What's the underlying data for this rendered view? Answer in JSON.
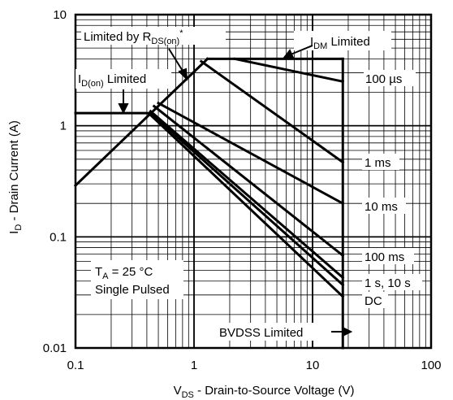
{
  "chart_data": {
    "type": "line",
    "x_scale": "log",
    "y_scale": "log",
    "xlim": [
      0.1,
      100
    ],
    "ylim": [
      0.01,
      10
    ],
    "grid": true,
    "x_ticks": [
      "0.1",
      "1",
      "10",
      "100"
    ],
    "y_ticks": [
      "10",
      "1",
      "0.1",
      "0.01"
    ],
    "xlabel": {
      "main": "V",
      "sub": "DS",
      "rest": " - Drain-to-Source Voltage (V)"
    },
    "ylabel": {
      "main": "I",
      "sub": "D",
      "rest": " - Drain Current (A)"
    },
    "series": [
      {
        "name": "Limited by RDS(on)",
        "x": [
          0.1,
          1.3
        ],
        "y": [
          0.29,
          4.0
        ]
      },
      {
        "name": "IDM Limited",
        "x": [
          1.3,
          18
        ],
        "y": [
          4.0,
          4.0
        ]
      },
      {
        "name": "ID(on) Limited",
        "x": [
          0.1,
          0.43
        ],
        "y": [
          1.3,
          1.3
        ]
      },
      {
        "name": "100 µs",
        "x": [
          2.2,
          18
        ],
        "y": [
          4.0,
          2.5
        ]
      },
      {
        "name": "1 ms",
        "x": [
          1.15,
          18
        ],
        "y": [
          3.8,
          0.47
        ]
      },
      {
        "name": "10 ms",
        "x": [
          0.5,
          18
        ],
        "y": [
          1.6,
          0.2
        ]
      },
      {
        "name": "100 ms",
        "x": [
          0.46,
          18
        ],
        "y": [
          1.5,
          0.068
        ]
      },
      {
        "name": "1 s",
        "x": [
          0.43,
          18
        ],
        "y": [
          1.35,
          0.043
        ]
      },
      {
        "name": "10 s",
        "x": [
          0.43,
          18
        ],
        "y": [
          1.3,
          0.037
        ]
      },
      {
        "name": "DC",
        "x": [
          0.43,
          18
        ],
        "y": [
          1.25,
          0.029
        ]
      },
      {
        "name": "BVDSS Limited",
        "x": [
          18,
          18
        ],
        "y": [
          0.01,
          4.0
        ]
      }
    ],
    "annotations": {
      "rds": {
        "main": "Limited by R",
        "sub": "DS(on)",
        "sup": "*"
      },
      "idm": {
        "main": "I",
        "sub": "DM",
        "rest": " Limited"
      },
      "idon": {
        "main": "I",
        "sub": "D(on)",
        "rest": " Limited"
      },
      "us100": "100 µs",
      "ms1": "1 ms",
      "ms10": "10 ms",
      "ms100": "100 ms",
      "s1s10": "1 s, 10 s",
      "dc": "DC",
      "bvdss": "BVDSS Limited",
      "ta": {
        "main": "T",
        "sub": "A",
        "rest": " = 25 °C"
      },
      "pulse": "Single Pulsed"
    }
  }
}
